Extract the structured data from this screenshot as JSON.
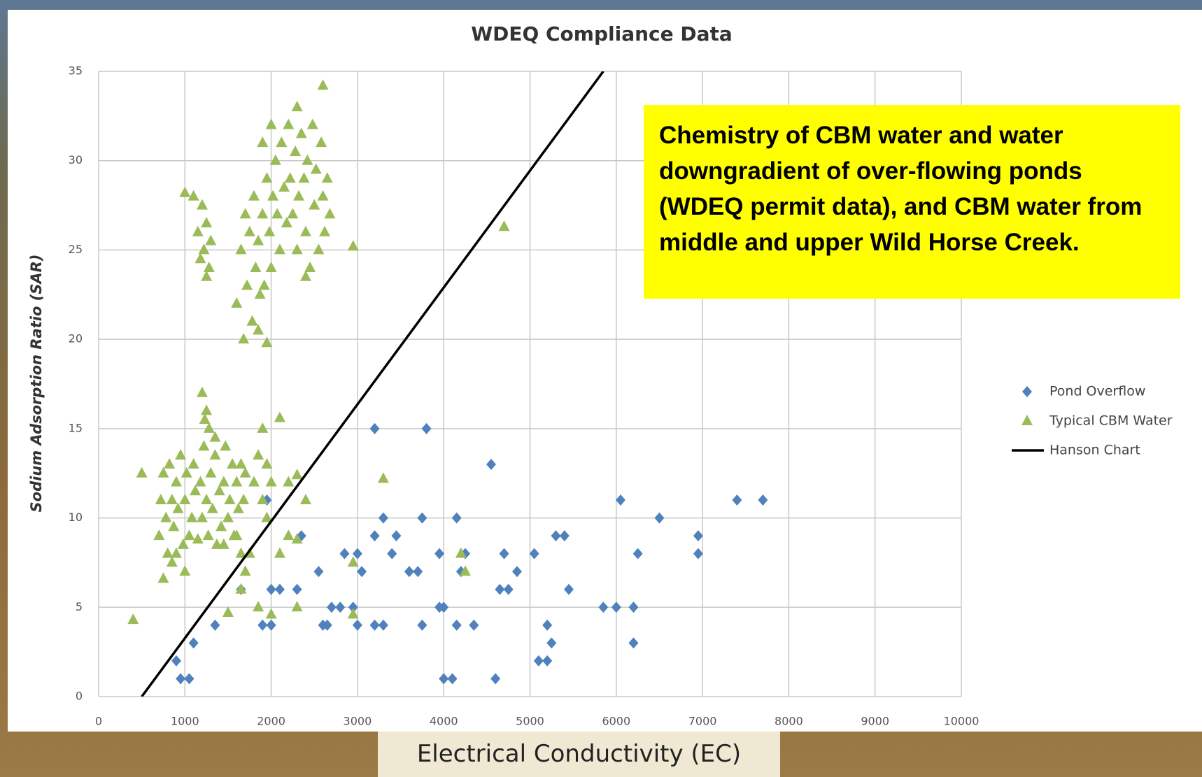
{
  "chart_data": {
    "type": "scatter",
    "title": "WDEQ Compliance Data",
    "x_label": "Electrical Conductivity (EC)",
    "y_label": "Sodium Adsorption Ratio (SAR)",
    "annotation": "Chemistry of CBM water and water downgradient of over-flowing ponds (WDEQ permit data), and CBM water from middle and upper Wild Horse Creek.",
    "xlim": [
      0,
      10000
    ],
    "ylim": [
      0,
      35
    ],
    "xticks": [
      0,
      1000,
      2000,
      3000,
      4000,
      5000,
      6000,
      7000,
      8000,
      9000,
      10000
    ],
    "yticks": [
      0,
      5,
      10,
      15,
      20,
      25,
      30,
      35
    ],
    "grid": true,
    "series": [
      {
        "name": "Pond Overflow",
        "marker": "diamond",
        "color": "#4f81bd",
        "x": [
          900,
          950,
          1050,
          1100,
          1350,
          1650,
          1900,
          2000,
          2000,
          1950,
          2100,
          2300,
          2350,
          2550,
          2600,
          2650,
          2700,
          2800,
          2850,
          2950,
          3000,
          3000,
          3050,
          3200,
          3200,
          3200,
          3300,
          3300,
          3400,
          3450,
          3600,
          3700,
          3750,
          3750,
          3800,
          3950,
          3950,
          4000,
          4000,
          4100,
          4150,
          4150,
          4200,
          4250,
          4350,
          4550,
          4600,
          4650,
          4700,
          4750,
          4850,
          5050,
          5100,
          5200,
          5200,
          5250,
          5300,
          5400,
          5450,
          5850,
          6000,
          6050,
          6200,
          6200,
          6250,
          6500,
          6950,
          6950,
          7400,
          7700
        ],
        "values": [
          2,
          1,
          1,
          3,
          4,
          6,
          4,
          4,
          6,
          11,
          6,
          6,
          9,
          7,
          4,
          4,
          5,
          5,
          8,
          5,
          4,
          8,
          7,
          9,
          4,
          15,
          10,
          4,
          8,
          9,
          7,
          7,
          4,
          10,
          15,
          8,
          5,
          5,
          1,
          1,
          4,
          10,
          7,
          8,
          4,
          13,
          1,
          6,
          8,
          6,
          7,
          8,
          2,
          4,
          2,
          3,
          9,
          9,
          6,
          5,
          5,
          11,
          5,
          3,
          8,
          10,
          9,
          8,
          11,
          11
        ]
      },
      {
        "name": "Typical CBM Water",
        "marker": "triangle",
        "color": "#9bbb59",
        "x": [
          700,
          720,
          750,
          780,
          800,
          820,
          850,
          870,
          900,
          920,
          950,
          980,
          1000,
          1020,
          1050,
          1080,
          1100,
          1120,
          1150,
          1180,
          1200,
          1220,
          1250,
          1270,
          1300,
          1320,
          1350,
          1370,
          1400,
          1420,
          1450,
          1470,
          1500,
          1520,
          1550,
          1570,
          1600,
          1620,
          1650,
          1680,
          1700,
          1250,
          1280,
          1230,
          1350,
          1800,
          1850,
          1900,
          1950,
          2000,
          1950,
          1750,
          1700,
          1650,
          850,
          900,
          1600,
          1450,
          1600,
          1650,
          1680,
          1700,
          1720,
          1750,
          1780,
          1800,
          1820,
          1850,
          1870,
          1900,
          1920,
          1950,
          1980,
          2000,
          2020,
          2050,
          2070,
          2100,
          2120,
          2150,
          2180,
          2200,
          2220,
          2250,
          2280,
          2300,
          2320,
          2350,
          2380,
          2400,
          2420,
          2450,
          2480,
          2500,
          2520,
          2550,
          2580,
          2600,
          2620,
          2650,
          2680,
          2000,
          1950,
          1850,
          2300,
          2400,
          1900,
          1100,
          1150,
          1180,
          1200,
          1220,
          1250,
          1280,
          1300,
          1250,
          400,
          500,
          3300,
          4700,
          2950,
          2600,
          1000,
          1200,
          1900,
          2100,
          1850,
          2000,
          2300,
          2950,
          2950,
          4200,
          4250,
          1650,
          1500,
          1000,
          750,
          2400,
          2200,
          2300,
          2100,
          2200,
          2300
        ],
        "values": [
          9,
          11,
          12.5,
          10,
          8,
          13,
          11,
          9.5,
          12,
          10.5,
          13.5,
          8.5,
          11,
          12.5,
          9,
          10,
          13,
          11.5,
          8.8,
          12,
          10,
          14,
          11,
          9,
          12.5,
          10.5,
          13.5,
          8.5,
          11.5,
          9.5,
          12,
          14,
          10,
          11,
          13,
          9,
          12,
          10.5,
          13,
          11,
          12.5,
          16,
          15,
          15.5,
          14.5,
          12,
          13.5,
          11,
          13,
          12,
          10,
          8,
          7,
          8,
          7.5,
          8,
          9,
          8.5,
          22,
          25,
          20,
          27,
          23,
          26,
          21,
          28,
          24,
          25.5,
          22.5,
          27,
          23,
          29,
          26,
          24,
          28,
          30,
          27,
          25,
          31,
          28.5,
          26.5,
          32,
          29,
          27,
          30.5,
          25,
          28,
          31.5,
          29,
          26,
          30,
          24,
          32,
          27.5,
          29.5,
          25,
          31,
          28,
          26,
          29,
          27,
          32,
          19.8,
          20.5,
          33,
          23.5,
          31,
          28,
          26,
          24.5,
          27.5,
          25,
          26.5,
          24,
          25.5,
          23.5,
          4.3,
          12.5,
          12.2,
          26.3,
          25.2,
          34.2,
          28.2,
          17,
          15,
          15.6,
          5,
          4.6,
          5,
          4.6,
          7.5,
          8,
          7,
          6,
          4.7,
          7,
          6.6,
          11,
          12,
          12.4,
          8,
          9,
          8.8
        ]
      },
      {
        "name": "Hanson Chart",
        "marker": "line",
        "color": "#000000",
        "x": [
          500,
          5850
        ],
        "values": [
          0,
          35
        ]
      }
    ]
  }
}
